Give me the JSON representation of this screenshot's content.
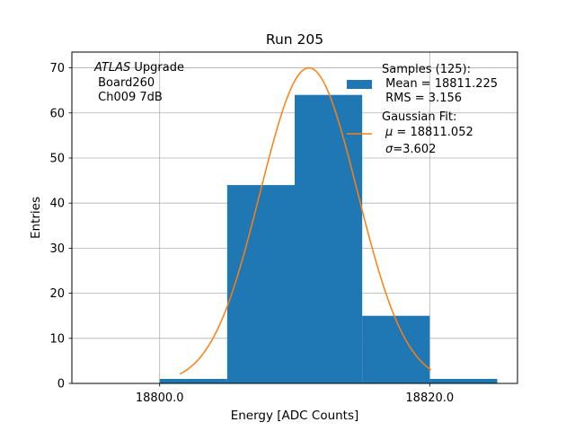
{
  "chart_data": {
    "type": "bar",
    "title": "Run 205",
    "xlabel": "Energy [ADC Counts]",
    "ylabel": "Entries",
    "xlim": [
      18793.5,
      18826.5
    ],
    "ylim": [
      0,
      73.5
    ],
    "x_ticks": [
      18800.0,
      18820.0
    ],
    "x_tick_labels": [
      "18800.0",
      "18820.0"
    ],
    "y_ticks": [
      0,
      10,
      20,
      30,
      40,
      50,
      60,
      70
    ],
    "y_tick_labels": [
      "0",
      "10",
      "20",
      "30",
      "40",
      "50",
      "60",
      "70"
    ],
    "grid": true,
    "bins": [
      {
        "low": 18800,
        "high": 18805,
        "count": 1
      },
      {
        "low": 18805,
        "high": 18810,
        "count": 44
      },
      {
        "low": 18810,
        "high": 18815,
        "count": 64
      },
      {
        "low": 18815,
        "high": 18820,
        "count": 15
      },
      {
        "low": 18820,
        "high": 18825,
        "count": 1
      }
    ],
    "fit": {
      "type": "gaussian",
      "mu": 18811.052,
      "sigma": 3.602,
      "amplitude": 70,
      "x_range": [
        18801.5,
        18820.1
      ]
    },
    "annotation": {
      "italic": "ATLAS",
      "line1_rest": " Upgrade",
      "line2": " Board260",
      "line3": " Ch009 7dB"
    },
    "legend": {
      "placement": "top-right",
      "samples_title": "Samples (125):",
      "samples_mean": " Mean = 18811.225",
      "samples_rms": " RMS = 3.156",
      "fit_title": "Gaussian Fit:",
      "fit_mu_symbol": "μ",
      "fit_mu_value": " = 18811.052",
      "fit_sigma_symbol": "σ",
      "fit_sigma_value": "=3.602"
    },
    "colors": {
      "histogram": "#1f77b4",
      "fit": "#ff7f0e",
      "grid": "#b0b0b0"
    }
  }
}
